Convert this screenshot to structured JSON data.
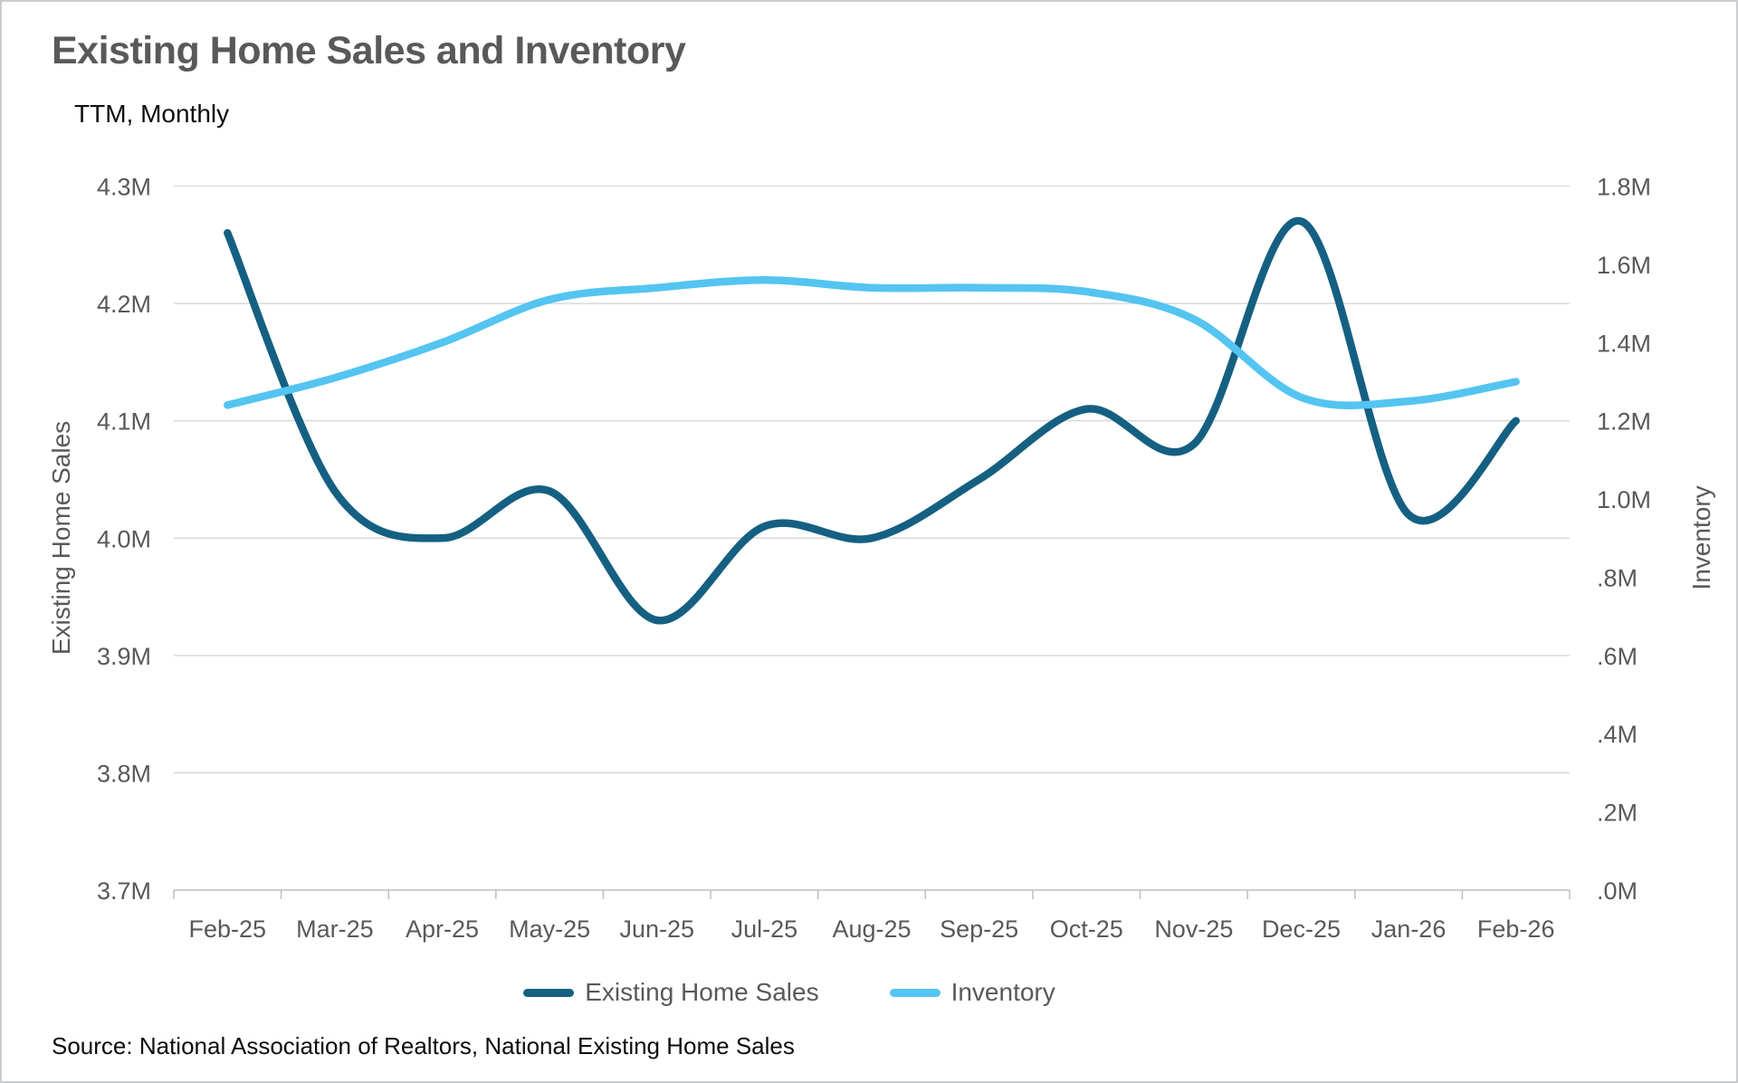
{
  "header": {
    "title": "Existing Home Sales and Inventory",
    "subtitle": "TTM, Monthly"
  },
  "source_note": "Source: National Association of Realtors, National Existing Home Sales",
  "colors": {
    "sales_line": "#156082",
    "inventory_line": "#54c4f1",
    "gridline": "#d9d9d9",
    "axis_line": "#bfbfbf",
    "text_gray": "#595959",
    "text_black": "#0d0d0d"
  },
  "legend": {
    "items": [
      {
        "label": "Existing Home Sales",
        "color": "#156082"
      },
      {
        "label": "Inventory",
        "color": "#54c4f1"
      }
    ]
  },
  "chart_data": {
    "type": "line",
    "title": "Existing Home Sales and Inventory",
    "subtitle": "TTM, Monthly",
    "grid": "horizontal",
    "legend_position": "bottom",
    "categories": [
      "Feb-25",
      "Mar-25",
      "Apr-25",
      "May-25",
      "Jun-25",
      "Jul-25",
      "Aug-25",
      "Sep-25",
      "Oct-25",
      "Nov-25",
      "Dec-25",
      "Jan-26",
      "Feb-26"
    ],
    "series": [
      {
        "name": "Existing Home Sales",
        "axis": "left",
        "color": "#156082",
        "smooth": true,
        "values": [
          4.26,
          4.04,
          4.0,
          4.04,
          3.93,
          4.01,
          4.0,
          4.05,
          4.11,
          4.08,
          4.27,
          4.02,
          4.1
        ]
      },
      {
        "name": "Inventory",
        "axis": "right",
        "color": "#54c4f1",
        "smooth": true,
        "values": [
          1.24,
          1.31,
          1.4,
          1.51,
          1.54,
          1.56,
          1.54,
          1.54,
          1.53,
          1.46,
          1.26,
          1.25,
          1.3
        ]
      }
    ],
    "axes": {
      "left": {
        "title": "Existing Home Sales",
        "min": 3.7,
        "max": 4.3,
        "tick_labels": [
          "4.3M",
          "4.2M",
          "4.1M",
          "4.0M",
          "3.9M",
          "3.8M",
          "3.7M"
        ]
      },
      "right": {
        "title": "Inventory",
        "min": 0.0,
        "max": 1.8,
        "tick_labels": [
          "1.8M",
          "1.6M",
          "1.4M",
          "1.2M",
          "1.0M",
          ".8M",
          ".6M",
          ".4M",
          ".2M",
          ".0M"
        ]
      }
    }
  }
}
